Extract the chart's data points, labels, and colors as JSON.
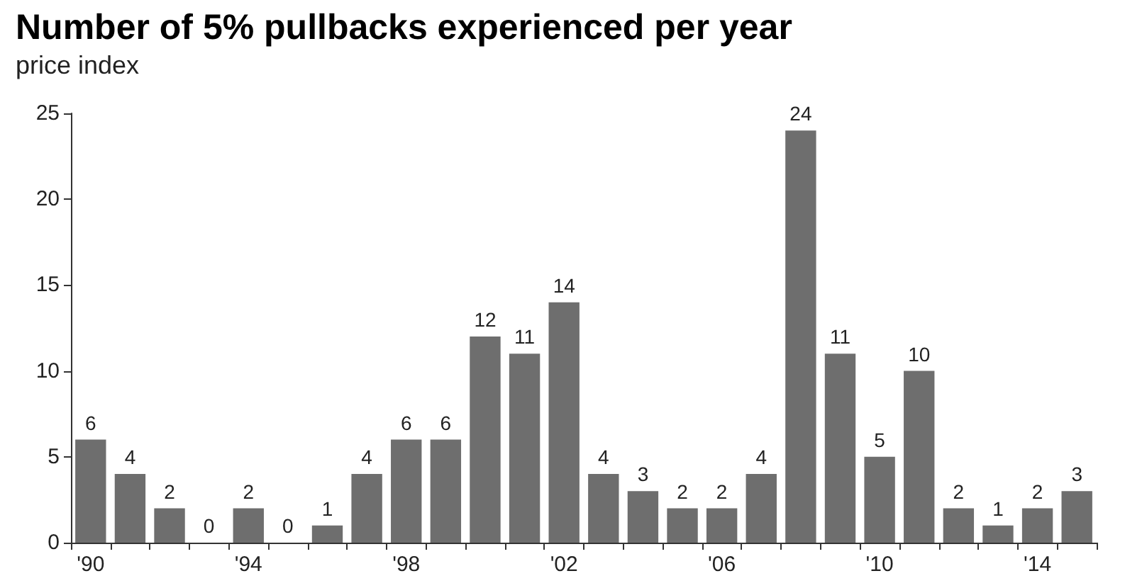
{
  "chart_data": {
    "type": "bar",
    "title": "Number of 5% pullbacks experienced per year",
    "subtitle": "price index",
    "categories": [
      "'90",
      null,
      null,
      null,
      "'94",
      null,
      null,
      null,
      "'98",
      null,
      null,
      null,
      "'02",
      null,
      null,
      null,
      "'06",
      null,
      null,
      null,
      "'10",
      null,
      null,
      null,
      "'14",
      null
    ],
    "values": [
      6,
      4,
      2,
      0,
      2,
      0,
      1,
      4,
      6,
      6,
      12,
      11,
      14,
      4,
      3,
      2,
      2,
      4,
      24,
      11,
      5,
      10,
      2,
      1,
      2,
      3
    ],
    "color": "#6e6e6e",
    "ylim": [
      0,
      25
    ],
    "yticks": [
      0,
      5,
      10,
      15,
      20,
      25
    ],
    "grid": false,
    "data_labels": true
  }
}
